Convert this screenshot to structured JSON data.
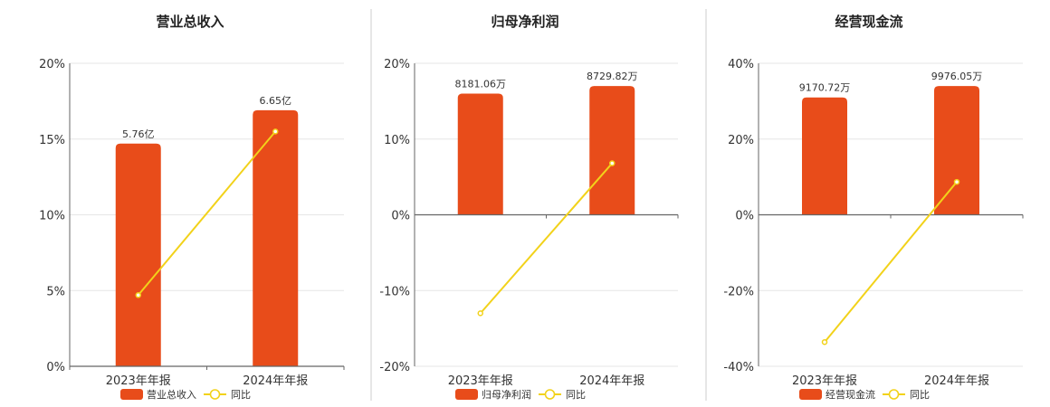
{
  "colors": {
    "bar": "#E84C1A",
    "line": "#F2D21A",
    "grid": "#E6E6E6",
    "axis": "#666666",
    "separator": "#CCCCCC"
  },
  "chart_data": [
    {
      "type": "bar",
      "title": "营业总收入",
      "categories": [
        "2023年年报",
        "2024年年报"
      ],
      "ylim": [
        0,
        20
      ],
      "yticks": [
        "0%",
        "5%",
        "10%",
        "15%",
        "20%"
      ],
      "tick_values": [
        0,
        5,
        10,
        15,
        20
      ],
      "series": [
        {
          "name": "营业总收入",
          "kind": "bar",
          "values": [
            14.7,
            16.9
          ],
          "labels": [
            "5.76亿",
            "6.65亿"
          ]
        },
        {
          "name": "同比",
          "kind": "line",
          "values": [
            4.7,
            15.5
          ]
        }
      ],
      "grid": true,
      "legend": "bottom"
    },
    {
      "type": "bar",
      "title": "归母净利润",
      "categories": [
        "2023年年报",
        "2024年年报"
      ],
      "ylim": [
        -20,
        20
      ],
      "yticks": [
        "-20%",
        "-10%",
        "0%",
        "10%",
        "20%"
      ],
      "tick_values": [
        -20,
        -10,
        0,
        10,
        20
      ],
      "series": [
        {
          "name": "归母净利润",
          "kind": "bar",
          "values": [
            16.0,
            17.0
          ],
          "labels": [
            "8181.06万",
            "8729.82万"
          ]
        },
        {
          "name": "同比",
          "kind": "line",
          "values": [
            -13.0,
            6.8
          ]
        }
      ],
      "grid": true,
      "legend": "bottom"
    },
    {
      "type": "bar",
      "title": "经营现金流",
      "categories": [
        "2023年年报",
        "2024年年报"
      ],
      "ylim": [
        -40,
        40
      ],
      "yticks": [
        "-40%",
        "-20%",
        "0%",
        "20%",
        "40%"
      ],
      "tick_values": [
        -40,
        -20,
        0,
        20,
        40
      ],
      "series": [
        {
          "name": "经营现金流",
          "kind": "bar",
          "values": [
            31.0,
            34.0
          ],
          "labels": [
            "9170.72万",
            "9976.05万"
          ]
        },
        {
          "name": "同比",
          "kind": "line",
          "values": [
            -33.6,
            8.7
          ]
        }
      ],
      "grid": true,
      "legend": "bottom"
    }
  ]
}
